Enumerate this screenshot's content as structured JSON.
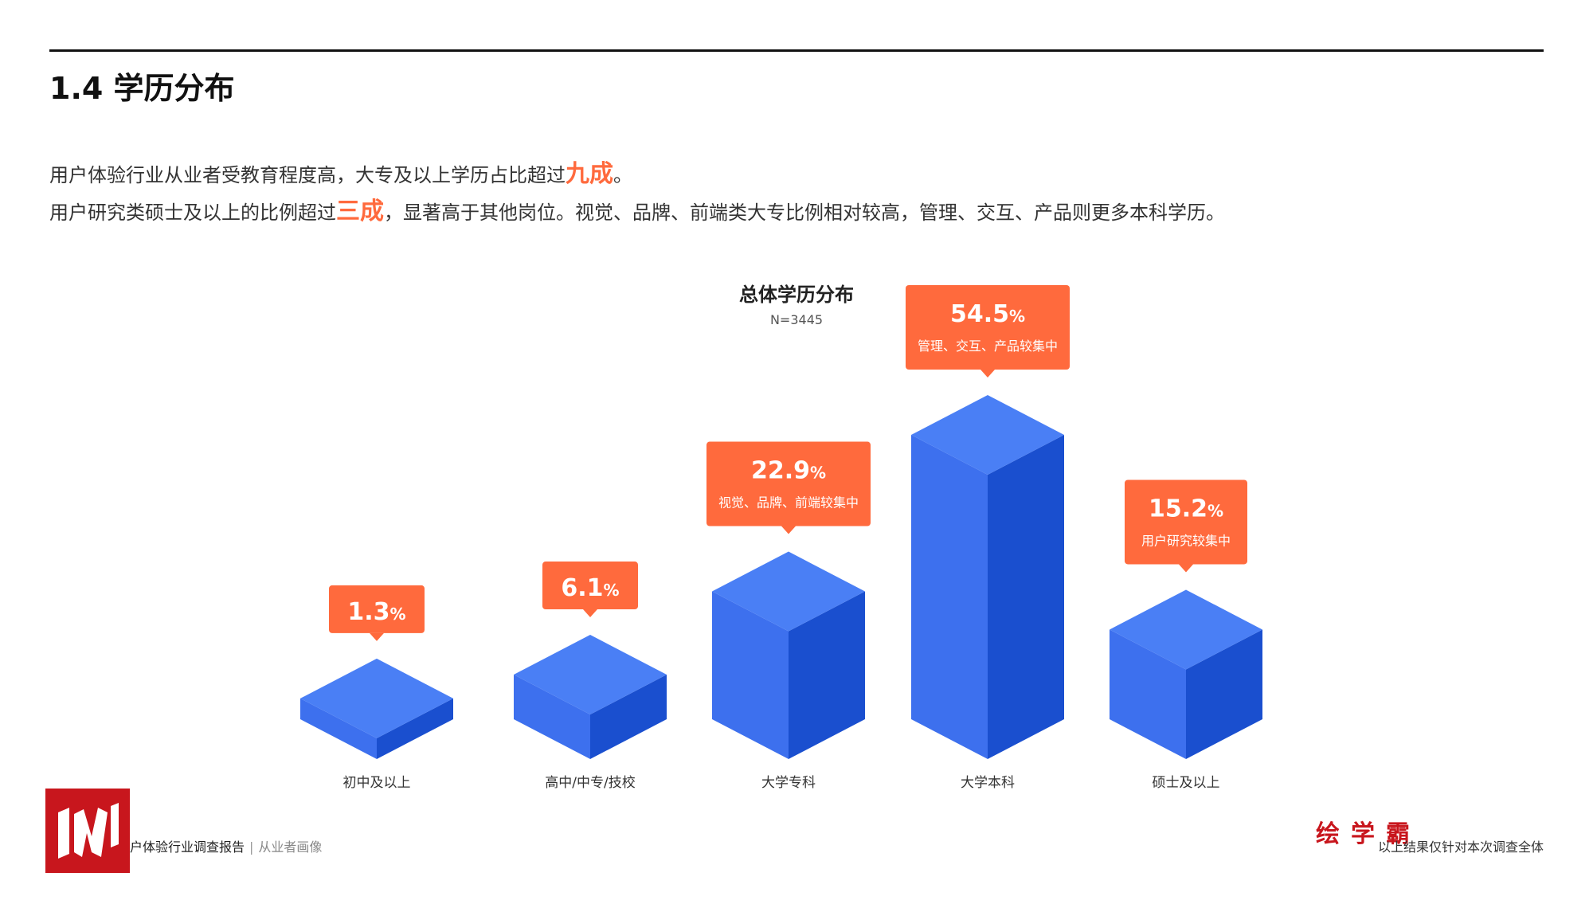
{
  "header": {
    "title": "1.4 学历分布"
  },
  "summary": {
    "line1_prefix": "用户体验行业从业者受教育程度高，大专及以上学历占比超过",
    "line1_highlight": "九成",
    "line1_suffix": "。",
    "line2_prefix": "用户研究类硕士及以上的比例超过",
    "line2_highlight": "三成",
    "line2_suffix": "，显著高于其他岗位。视觉、品牌、前端类大专比例相对较高，管理、交互、产品则更多本科学历。"
  },
  "footer": {
    "brand": "户体验行业调查报告",
    "separator": "|",
    "section": "从业者画像",
    "note": "以上结果仅针对本次调查全体",
    "logo_text": "绘学霸"
  },
  "colors": {
    "accent": "#ff6a3d",
    "bar_top": "#4a7ff5",
    "bar_front": "#3d70ee",
    "bar_side": "#1a4fcf",
    "logo_red": "#c8161d"
  },
  "chart_data": {
    "type": "bar",
    "title": "总体学历分布",
    "subtitle": "N=3445",
    "categories": [
      "初中及以上",
      "高中/中专/技校",
      "大学专科",
      "大学本科",
      "硕士及以上"
    ],
    "values": [
      1.3,
      6.1,
      22.9,
      54.5,
      15.2
    ],
    "value_labels": [
      "1.3",
      "6.1",
      "22.9",
      "54.5",
      "15.2"
    ],
    "unit": "%",
    "annotations": [
      "",
      "",
      "视觉、品牌、前端较集中",
      "管理、交互、产品较集中",
      "用户研究较集中"
    ],
    "xlabel": "",
    "ylabel": "",
    "ylim": [
      0,
      54.5
    ]
  }
}
